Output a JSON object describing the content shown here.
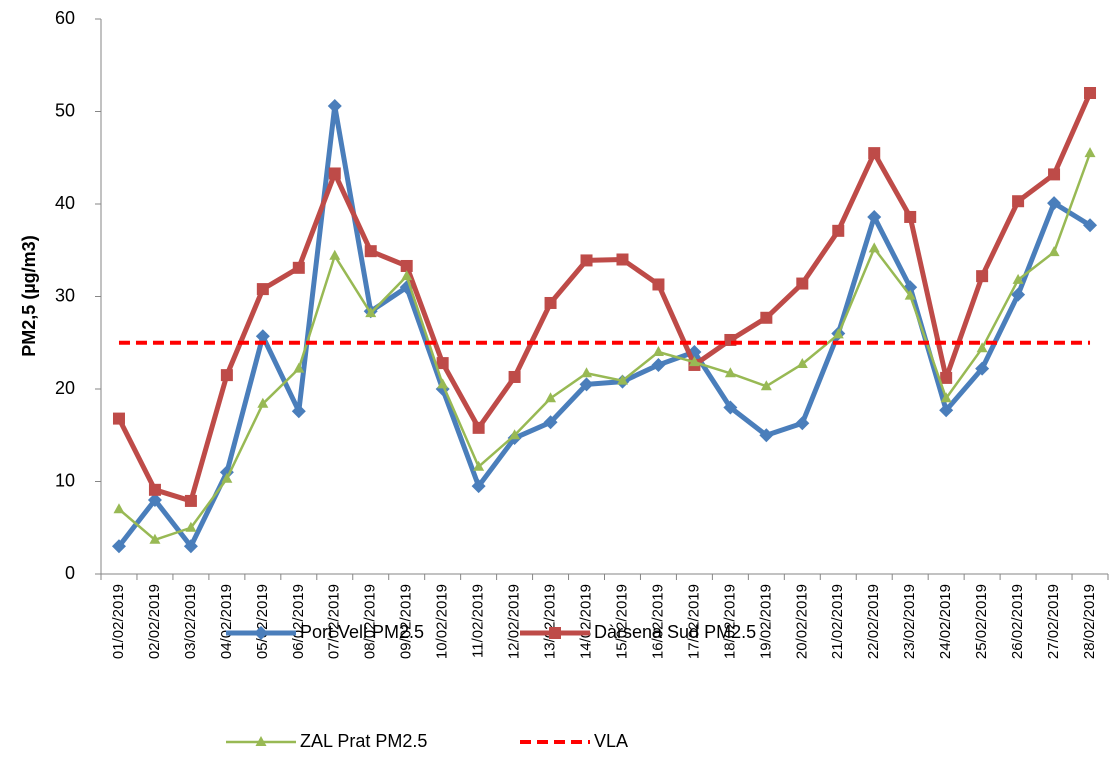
{
  "chart_data": {
    "type": "line",
    "y_label": "PM2,5 (µg/m3)",
    "categories": [
      "01/02/2019",
      "02/02/2019",
      "03/02/2019",
      "04/02/2019",
      "05/02/2019",
      "06/02/2019",
      "07/02/2019",
      "08/02/2019",
      "09/02/2019",
      "10/02/2019",
      "11/02/2019",
      "12/02/2019",
      "13/02/2019",
      "14/02/2019",
      "15/02/2019",
      "16/02/2019",
      "17/02/2019",
      "18/02/2019",
      "19/02/2019",
      "20/02/2019",
      "21/02/2019",
      "22/02/2019",
      "23/02/2019",
      "24/02/2019",
      "25/02/2019",
      "26/02/2019",
      "27/02/2019",
      "28/02/2019"
    ],
    "series": [
      {
        "name": "Port Vell PM2.5",
        "color": "#4a7ebb",
        "marker": "diamond",
        "width": 5,
        "values": [
          3,
          8,
          3,
          11,
          25.7,
          17.6,
          50.6,
          28.4,
          31,
          20,
          9.5,
          14.7,
          16.4,
          20.5,
          20.8,
          22.6,
          24,
          18,
          15,
          16.3,
          26,
          38.6,
          31,
          17.7,
          22.2,
          30.2,
          40.1,
          37.7
        ]
      },
      {
        "name": "Dàrsena Sud PM2.5",
        "color": "#be4b48",
        "marker": "square",
        "width": 5,
        "values": [
          16.8,
          9.1,
          7.9,
          21.5,
          30.8,
          33.1,
          43.3,
          34.9,
          33.3,
          22.8,
          15.8,
          21.3,
          29.3,
          33.9,
          34,
          31.3,
          22.6,
          25.3,
          27.7,
          31.4,
          37.1,
          45.5,
          38.6,
          21.2,
          32.2,
          40.3,
          43.2,
          52
        ]
      },
      {
        "name": "ZAL Prat PM2.5",
        "color": "#98b954",
        "marker": "triangle",
        "width": 2.5,
        "values": [
          7,
          3.7,
          5,
          10.3,
          18.4,
          22.2,
          34.4,
          28.2,
          32.2,
          20.5,
          11.6,
          15,
          19,
          21.7,
          20.9,
          24,
          22.9,
          21.7,
          20.3,
          22.7,
          25.9,
          35.2,
          30.1,
          19,
          24.4,
          31.8,
          34.8,
          45.5
        ]
      },
      {
        "name": "VLA",
        "color": "#ff0000",
        "marker": "none",
        "dashed": true,
        "width": 4,
        "values": [
          25,
          25,
          25,
          25,
          25,
          25,
          25,
          25,
          25,
          25,
          25,
          25,
          25,
          25,
          25,
          25,
          25,
          25,
          25,
          25,
          25,
          25,
          25,
          25,
          25,
          25,
          25,
          25
        ]
      }
    ],
    "ylim": [
      0,
      60
    ],
    "yticks": [
      0,
      10,
      20,
      30,
      40,
      50,
      60
    ]
  }
}
